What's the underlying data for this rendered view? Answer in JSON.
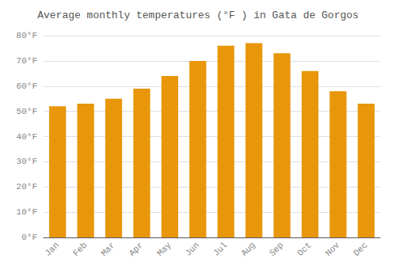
{
  "chart_data": {
    "type": "bar",
    "title": "Average monthly temperatures (°F ) in Gata de Gorgos",
    "categories": [
      "Jan",
      "Feb",
      "Mar",
      "Apr",
      "May",
      "Jun",
      "Jul",
      "Aug",
      "Sep",
      "Oct",
      "Nov",
      "Dec"
    ],
    "values": [
      52,
      53,
      55,
      59,
      64,
      70,
      76,
      77,
      73,
      66,
      58,
      53
    ],
    "color": "#E8960A",
    "ylim": [
      0,
      80
    ],
    "yticks": [
      {
        "value": 0,
        "label": "0°F"
      },
      {
        "value": 10,
        "label": "10°F"
      },
      {
        "value": 20,
        "label": "20°F"
      },
      {
        "value": 30,
        "label": "30°F"
      },
      {
        "value": 40,
        "label": "40°F"
      },
      {
        "value": 50,
        "label": "50°F"
      },
      {
        "value": 60,
        "label": "60°F"
      },
      {
        "value": 70,
        "label": "70°F"
      },
      {
        "value": 80,
        "label": "80°F"
      }
    ],
    "grid": true
  }
}
